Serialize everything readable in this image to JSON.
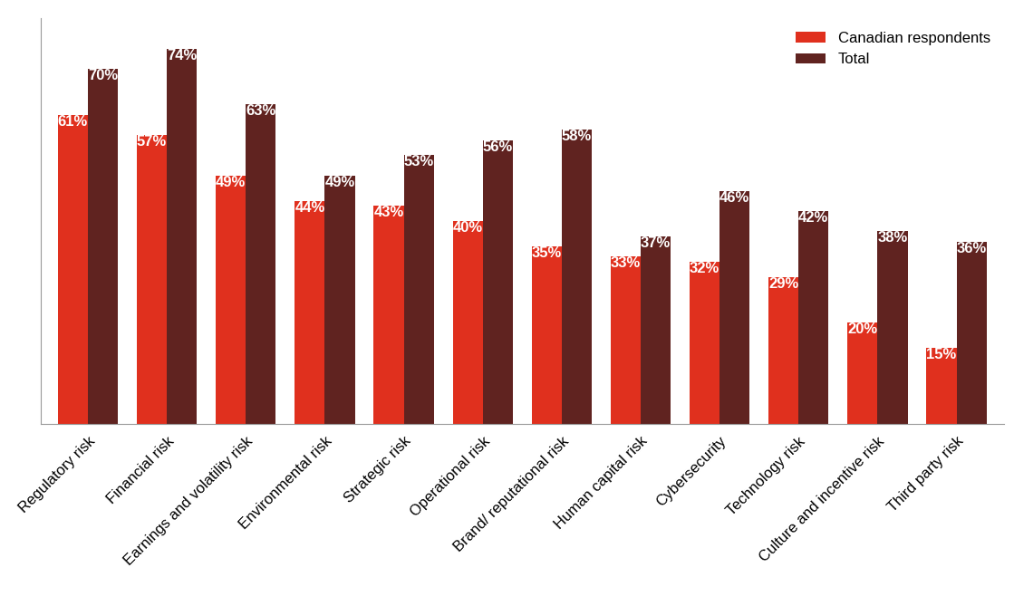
{
  "chart_data": {
    "type": "bar",
    "categories": [
      "Regulatory risk",
      "Financial risk",
      "Earnings and volatility risk",
      "Environmental risk",
      "Strategic risk",
      "Operational risk",
      "Brand/ reputational risk",
      "Human capital risk",
      "Cybersecurity",
      "Technology risk",
      "Culture and incentive risk",
      "Third party risk"
    ],
    "series": [
      {
        "name": "Canadian respondents",
        "color": "#e0301e",
        "values": [
          61,
          57,
          49,
          44,
          43,
          40,
          35,
          33,
          32,
          29,
          20,
          15
        ],
        "value_labels": [
          "61%",
          "57%",
          "49%",
          "44%",
          "43%",
          "40%",
          "35%",
          "33%",
          "32%",
          "29%",
          "20%",
          "15%"
        ]
      },
      {
        "name": "Total",
        "color": "#602320",
        "values": [
          70,
          74,
          63,
          49,
          53,
          56,
          58,
          37,
          46,
          42,
          38,
          36
        ],
        "value_labels": [
          "70%",
          "74%",
          "63%",
          "49%",
          "53%",
          "56%",
          "58%",
          "37%",
          "46%",
          "42%",
          "38%",
          "36%"
        ]
      }
    ],
    "ylim": [
      0,
      80
    ],
    "yticks": [],
    "grid": false,
    "legend": "upper right",
    "data_labels": true,
    "tick_labels": "x"
  }
}
